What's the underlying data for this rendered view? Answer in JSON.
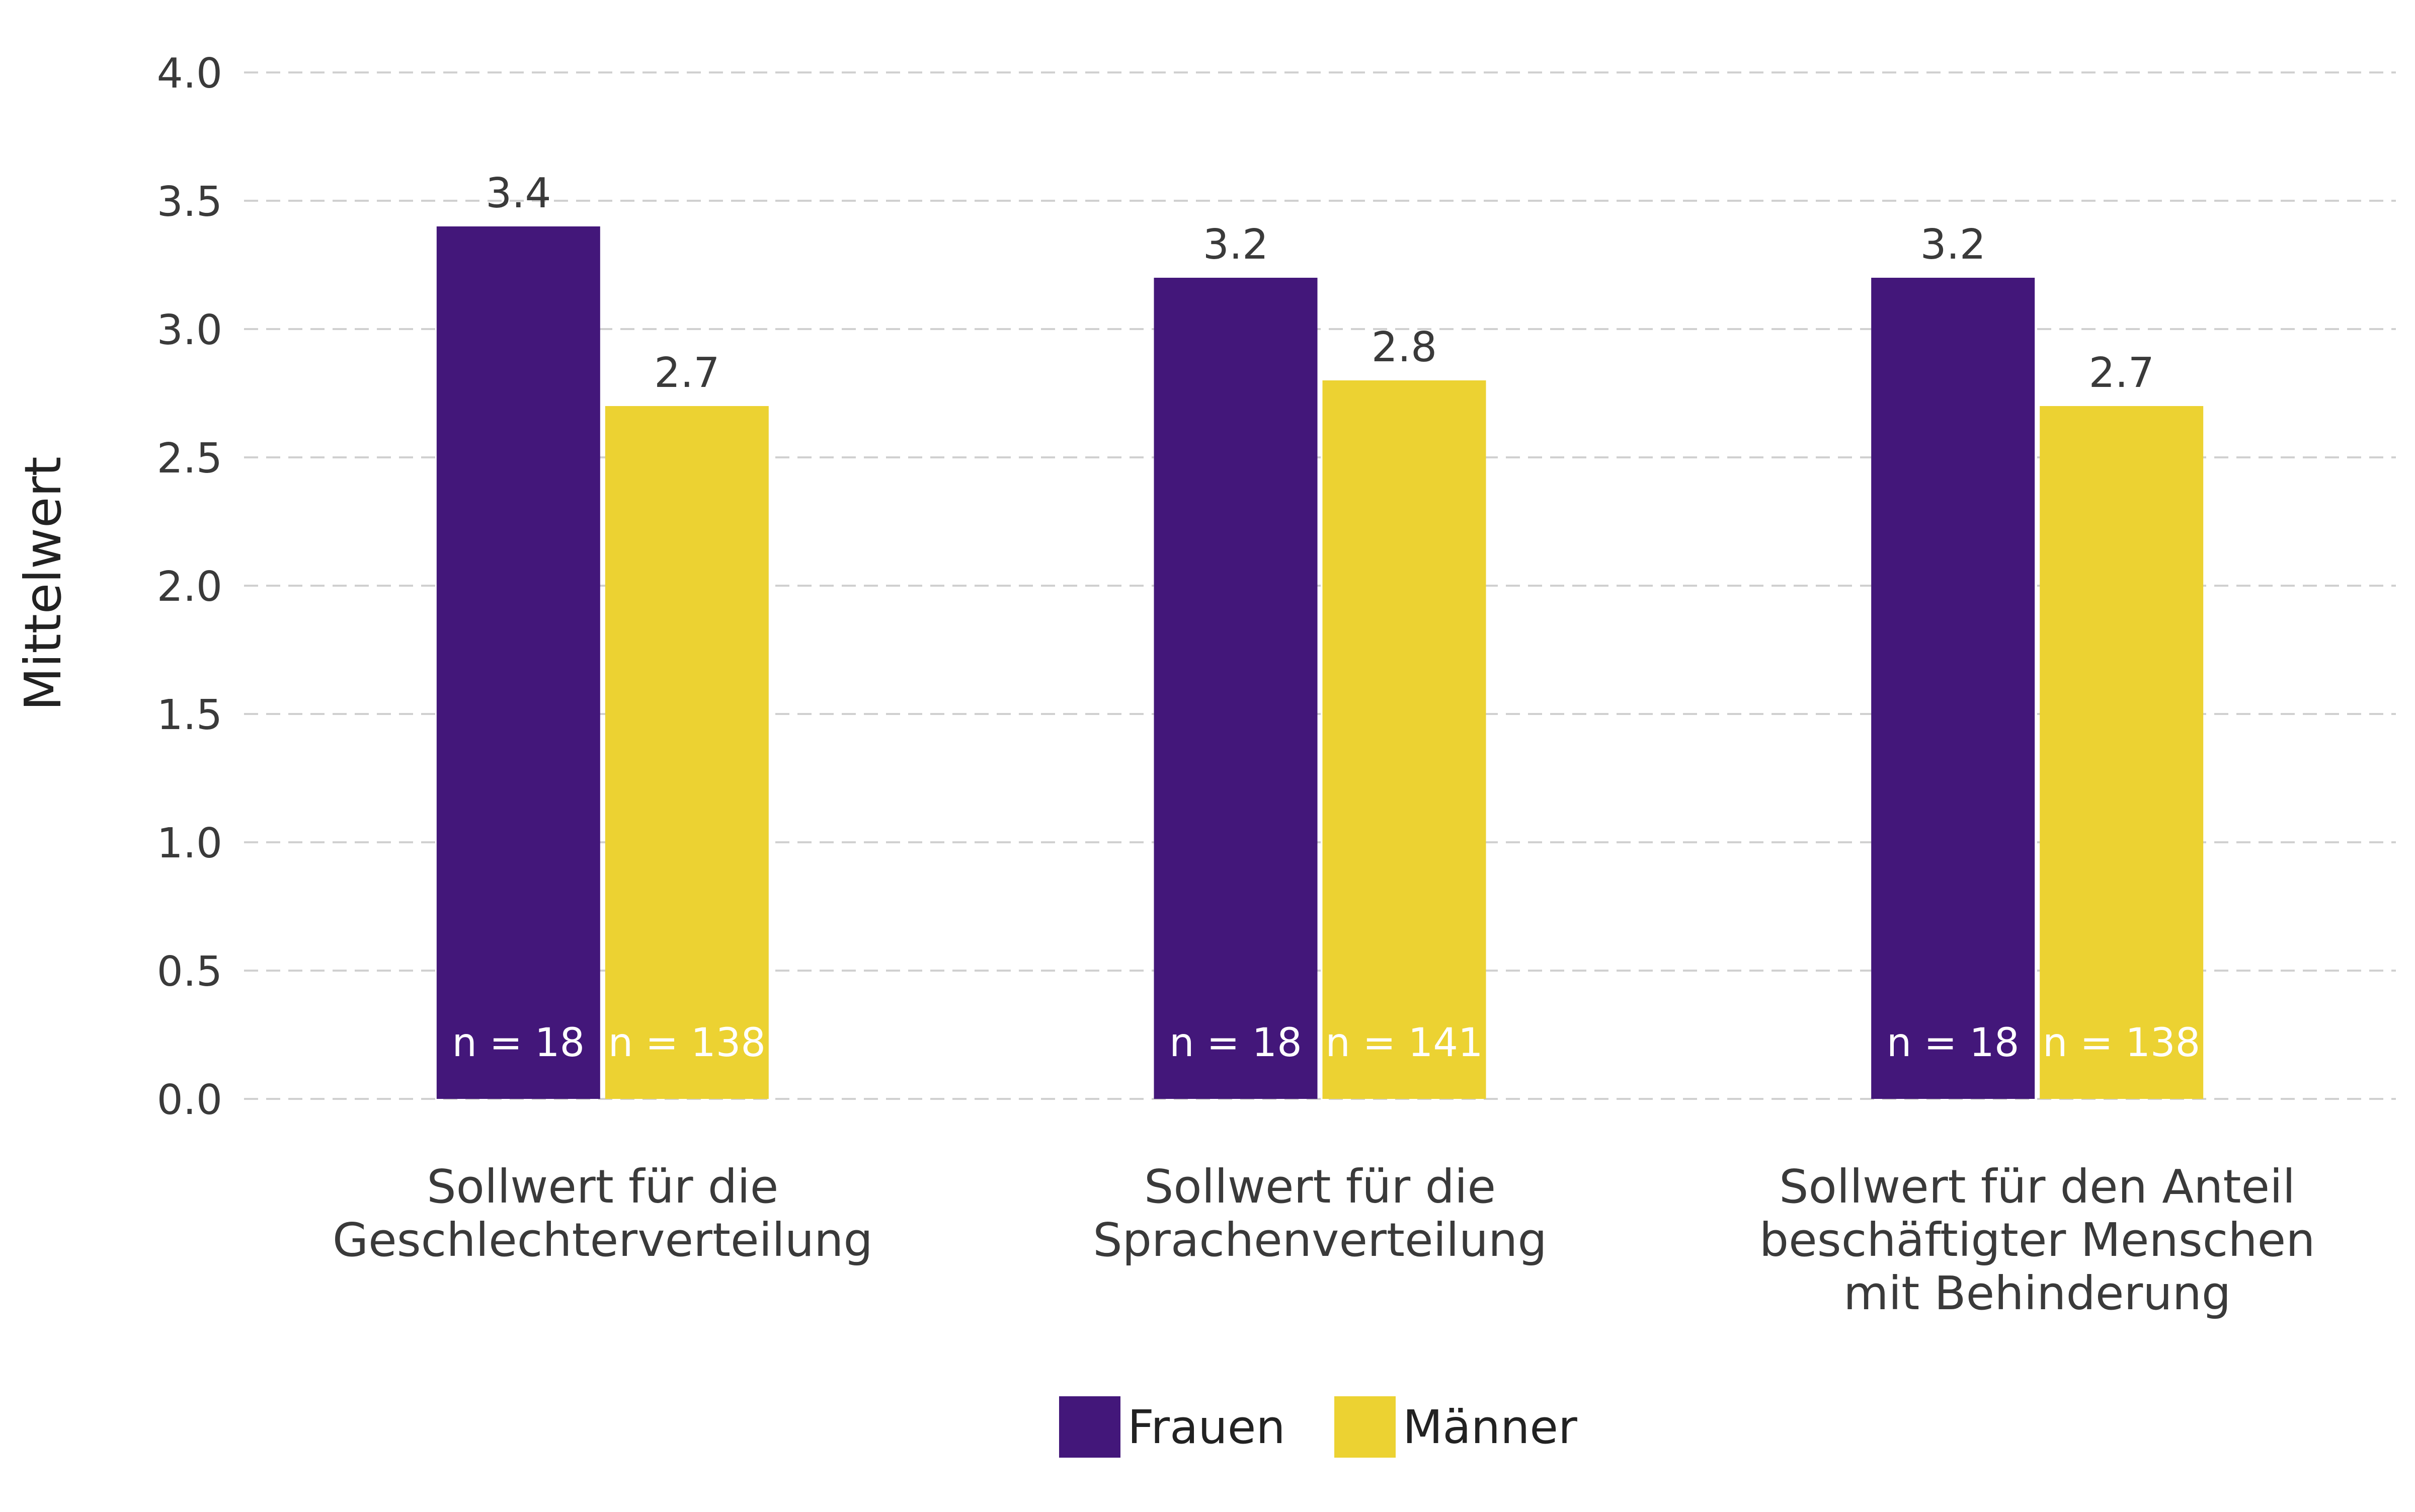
{
  "chart_data": {
    "type": "bar",
    "ylabel": "Mittelwert",
    "xlabel": "",
    "ylim": [
      0,
      4
    ],
    "y_ticks": [
      "0.0",
      "0.5",
      "1.0",
      "1.5",
      "2.0",
      "2.5",
      "3.0",
      "3.5",
      "4.0"
    ],
    "grid": "horizontal dashed",
    "legend_position": "bottom",
    "categories": [
      [
        "Sollwert für die",
        "Geschlechterverteilung"
      ],
      [
        "Sollwert für die",
        "Sprachenverteilung"
      ],
      [
        "Sollwert für den Anteil",
        "beschäftigter Menschen",
        "mit Behinderung"
      ]
    ],
    "series": [
      {
        "name": "Frauen",
        "color": "#43177a",
        "values": [
          3.4,
          3.2,
          3.2
        ],
        "value_labels": [
          "3.4",
          "3.2",
          "3.2"
        ],
        "n_labels": [
          "n = 18",
          "n = 18",
          "n = 18"
        ]
      },
      {
        "name": "Männer",
        "color": "#ecd232",
        "values": [
          2.7,
          2.8,
          2.7
        ],
        "value_labels": [
          "2.7",
          "2.8",
          "2.7"
        ],
        "n_labels": [
          "n = 138",
          "n = 141",
          "n = 138"
        ]
      }
    ]
  }
}
